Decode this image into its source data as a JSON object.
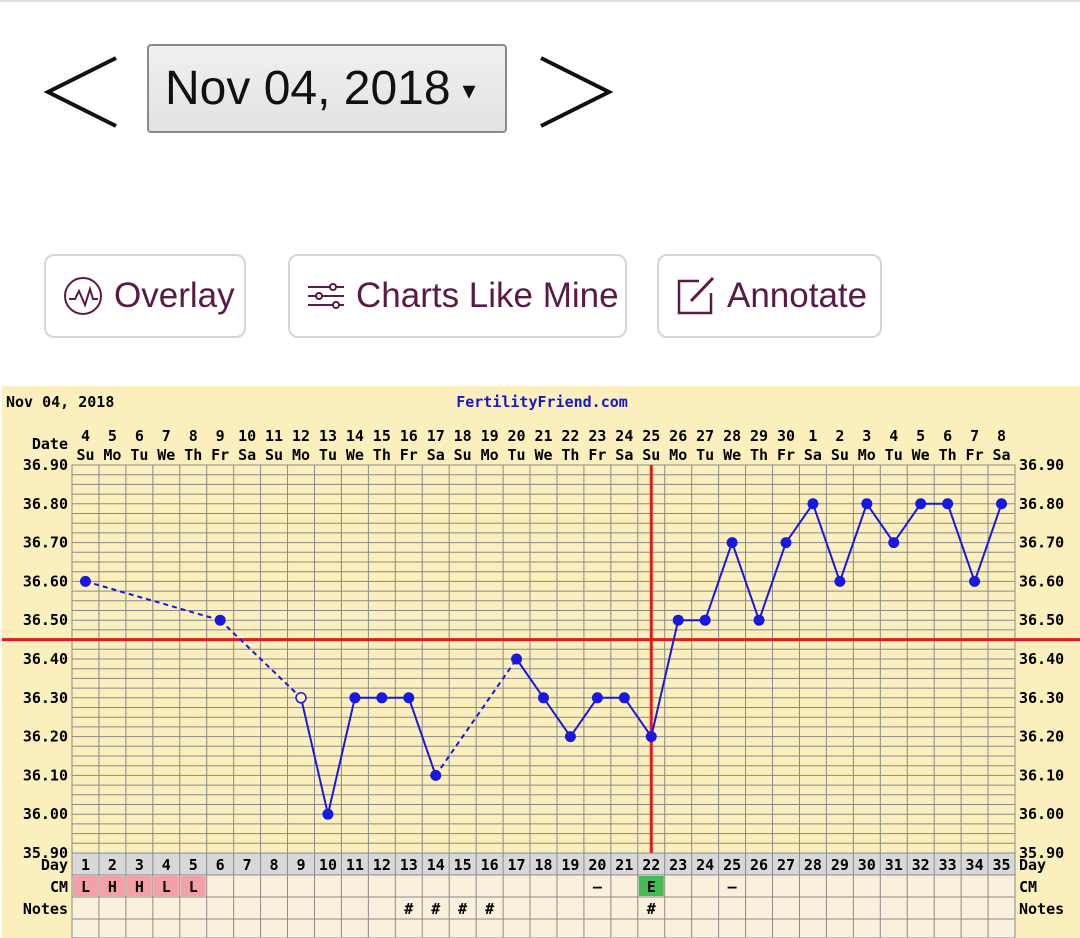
{
  "nav": {
    "date_value": "Nov 04, 2018",
    "caret": "▾",
    "prev_icon": "chevron-left-icon",
    "next_icon": "chevron-right-icon"
  },
  "toolbar": {
    "overlay_label": "Overlay",
    "overlay_icon": "chart-wave-icon",
    "charts_like_mine_label": "Charts Like Mine",
    "charts_like_mine_icon": "sliders-icon",
    "annotate_label": "Annotate",
    "annotate_icon": "edit-note-icon",
    "label_color": "#5a1a46"
  },
  "chart_data": {
    "type": "line",
    "date_title": "Nov 04, 2018",
    "site": "FertilityFriend.com",
    "date_row_label": "Date",
    "day_row_label": "Day",
    "cm_row_label": "CM",
    "notes_row_label": "Notes",
    "dates": [
      "4",
      "5",
      "6",
      "7",
      "8",
      "9",
      "10",
      "11",
      "12",
      "13",
      "14",
      "15",
      "16",
      "17",
      "18",
      "19",
      "20",
      "21",
      "22",
      "23",
      "24",
      "25",
      "26",
      "27",
      "28",
      "29",
      "30",
      "1",
      "2",
      "3",
      "4",
      "5",
      "6",
      "7",
      "8"
    ],
    "weekdays": [
      "Su",
      "Mo",
      "Tu",
      "We",
      "Th",
      "Fr",
      "Sa",
      "Su",
      "Mo",
      "Tu",
      "We",
      "Th",
      "Fr",
      "Sa",
      "Su",
      "Mo",
      "Tu",
      "We",
      "Th",
      "Fr",
      "Sa",
      "Su",
      "Mo",
      "Tu",
      "We",
      "Th",
      "Fr",
      "Sa",
      "Su",
      "Mo",
      "Tu",
      "We",
      "Th",
      "Fr",
      "Sa"
    ],
    "days": [
      1,
      2,
      3,
      4,
      5,
      6,
      7,
      8,
      9,
      10,
      11,
      12,
      13,
      14,
      15,
      16,
      17,
      18,
      19,
      20,
      21,
      22,
      23,
      24,
      25,
      26,
      27,
      28,
      29,
      30,
      31,
      32,
      33,
      34,
      35
    ],
    "y_ticks": [
      "36.90",
      "36.80",
      "36.70",
      "36.60",
      "36.50",
      "36.40",
      "36.30",
      "36.20",
      "36.10",
      "36.00",
      "35.90"
    ],
    "ylim": [
      35.9,
      36.9
    ],
    "temps": [
      {
        "day": 1,
        "temp": 36.6
      },
      {
        "day": 6,
        "temp": 36.5
      },
      {
        "day": 9,
        "temp": 36.3,
        "discarded": true
      },
      {
        "day": 10,
        "temp": 36.0
      },
      {
        "day": 11,
        "temp": 36.3
      },
      {
        "day": 12,
        "temp": 36.3
      },
      {
        "day": 13,
        "temp": 36.3
      },
      {
        "day": 14,
        "temp": 36.1
      },
      {
        "day": 17,
        "temp": 36.4
      },
      {
        "day": 18,
        "temp": 36.3
      },
      {
        "day": 19,
        "temp": 36.2
      },
      {
        "day": 20,
        "temp": 36.3
      },
      {
        "day": 21,
        "temp": 36.3
      },
      {
        "day": 22,
        "temp": 36.2
      },
      {
        "day": 23,
        "temp": 36.5
      },
      {
        "day": 24,
        "temp": 36.5
      },
      {
        "day": 25,
        "temp": 36.7
      },
      {
        "day": 26,
        "temp": 36.5
      },
      {
        "day": 27,
        "temp": 36.7
      },
      {
        "day": 28,
        "temp": 36.8
      },
      {
        "day": 29,
        "temp": 36.6
      },
      {
        "day": 30,
        "temp": 36.8
      },
      {
        "day": 31,
        "temp": 36.7
      },
      {
        "day": 32,
        "temp": 36.8
      },
      {
        "day": 33,
        "temp": 36.8
      },
      {
        "day": 34,
        "temp": 36.6
      },
      {
        "day": 35,
        "temp": 36.8
      }
    ],
    "dashed_gaps_after_days": [
      1,
      6,
      14
    ],
    "coverline_temp": 36.45,
    "ovulation_day": 22,
    "cm": [
      {
        "day": 1,
        "text": "L",
        "fill": "#f4a0a8"
      },
      {
        "day": 2,
        "text": "H",
        "fill": "#f4a0a8"
      },
      {
        "day": 3,
        "text": "H",
        "fill": "#f4a0a8"
      },
      {
        "day": 4,
        "text": "L",
        "fill": "#f4a0a8"
      },
      {
        "day": 5,
        "text": "L",
        "fill": "#f4a0a8"
      },
      {
        "day": 20,
        "text": "–",
        "fill": ""
      },
      {
        "day": 22,
        "text": "E",
        "fill": "#44bb55"
      },
      {
        "day": 25,
        "text": "–",
        "fill": ""
      }
    ],
    "notes": [
      13,
      14,
      15,
      16,
      22
    ],
    "note_mark": "#",
    "colors": {
      "background": "#fbf0bd",
      "grid": "#8a8a8a",
      "line": "#1818e0",
      "coverline": "#dd1c1c",
      "day_row": "#d8d8d8",
      "cm_row": "#fbf0dc",
      "site_text": "#1818c8"
    }
  }
}
